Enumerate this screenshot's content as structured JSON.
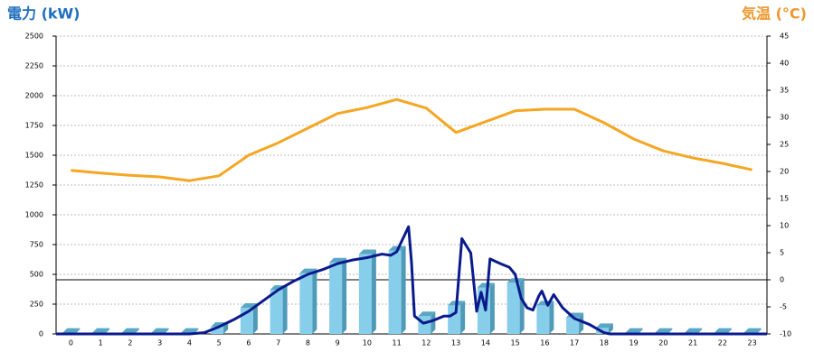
{
  "chart_data": {
    "type": "combo",
    "title": "電力 (kW)",
    "y2_title": "気温 (°C)",
    "title_color": "#1f6fbf",
    "y2_title_color": "#f0962a",
    "categories": [
      0,
      1,
      2,
      3,
      4,
      5,
      6,
      7,
      8,
      9,
      10,
      11,
      12,
      13,
      14,
      15,
      16,
      17,
      18,
      19,
      20,
      21,
      22,
      23
    ],
    "xlim": [
      -0.5,
      23.5
    ],
    "ylim": [
      0,
      2500
    ],
    "yticks": [
      0,
      250,
      500,
      750,
      1000,
      1250,
      1500,
      1750,
      2000,
      2250,
      2500
    ],
    "y2lim": [
      -10,
      45
    ],
    "y2ticks": [
      -10,
      -5,
      0,
      5,
      10,
      15,
      20,
      25,
      30,
      35,
      40,
      45
    ],
    "grid": true,
    "bars": {
      "type": "bar",
      "color": "#87ceeb",
      "values": [
        10,
        10,
        10,
        10,
        10,
        60,
        220,
        370,
        510,
        600,
        670,
        700,
        150,
        240,
        390,
        430,
        240,
        140,
        50,
        10,
        10,
        10,
        10,
        10
      ]
    },
    "power_line": {
      "type": "line",
      "color": "#0a1a8c",
      "x": [
        -0.5,
        4,
        4.5,
        5,
        5.5,
        6,
        6.5,
        7,
        7.5,
        8,
        8.5,
        9,
        9.5,
        10,
        10.5,
        10.8,
        11,
        11.4,
        11.5,
        11.6,
        11.9,
        12.2,
        12.6,
        12.8,
        13,
        13.2,
        13.5,
        13.7,
        13.85,
        14,
        14.15,
        14.5,
        14.8,
        15,
        15.2,
        15.4,
        15.6,
        15.8,
        15.9,
        16.1,
        16.3,
        16.6,
        17,
        17.5,
        18,
        18.2,
        23.5
      ],
      "values": [
        0,
        0,
        10,
        60,
        120,
        190,
        280,
        370,
        440,
        500,
        540,
        590,
        620,
        640,
        670,
        660,
        690,
        900,
        600,
        150,
        90,
        110,
        150,
        150,
        180,
        800,
        680,
        190,
        350,
        200,
        630,
        590,
        560,
        500,
        300,
        220,
        200,
        320,
        360,
        240,
        330,
        220,
        130,
        80,
        10,
        0,
        0
      ]
    },
    "temperature": {
      "type": "line",
      "color": "#f5a623",
      "axis": "y2",
      "values": [
        20.2,
        19.7,
        19.3,
        19,
        18.3,
        19.2,
        23,
        25.3,
        28,
        30.7,
        31.8,
        33.3,
        31.7,
        27.2,
        29.2,
        31.2,
        31.5,
        31.5,
        29,
        26,
        23.8,
        22.5,
        21.5,
        20.3
      ]
    }
  }
}
